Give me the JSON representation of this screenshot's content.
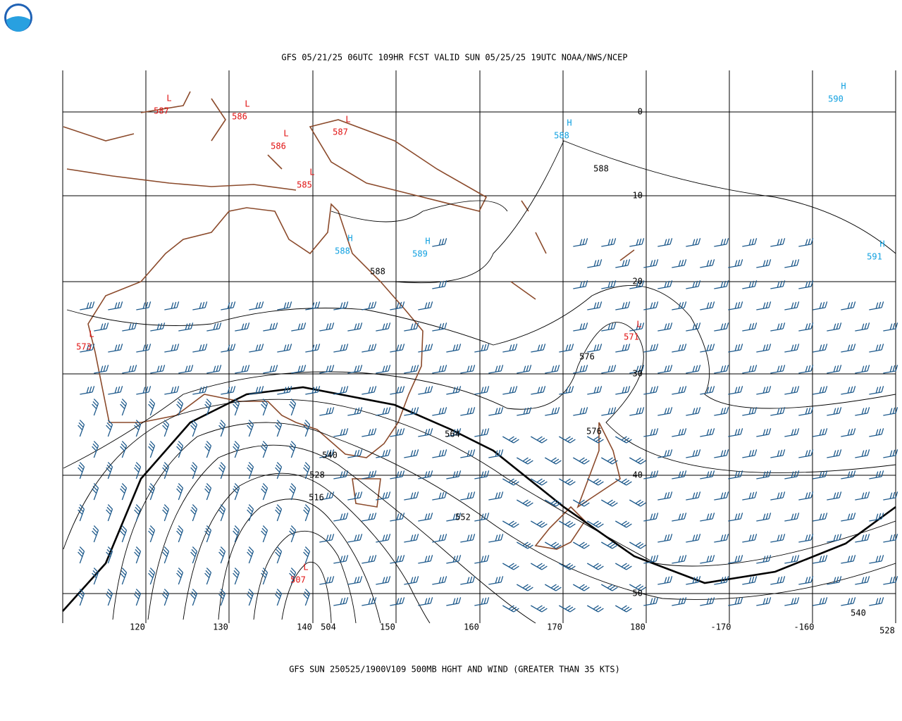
{
  "header": {
    "title": "GFS 05/21/25 06UTC 109HR FCST VALID SUN 05/25/25 19UTC NOAA/NWS/NCEP",
    "footer": "GFS SUN 250525/1900V109 500MB HGHT AND WIND (GREATER THAN 35 KTS)"
  },
  "map": {
    "lon_labels": [
      120,
      130,
      140,
      150,
      160,
      170,
      180,
      -170,
      -160
    ],
    "lat_labels": [
      0,
      10,
      20,
      30,
      40,
      50
    ],
    "pressure_centers": [
      {
        "type": "L",
        "value": 587
      },
      {
        "type": "L",
        "value": 586
      },
      {
        "type": "L",
        "value": 586
      },
      {
        "type": "L",
        "value": 587
      },
      {
        "type": "L",
        "value": 585
      },
      {
        "type": "H",
        "value": 588
      },
      {
        "type": "H",
        "value": 590
      },
      {
        "type": "H",
        "value": 588
      },
      {
        "type": "H",
        "value": 589
      },
      {
        "type": "H",
        "value": 591
      },
      {
        "type": "L",
        "value": 573
      },
      {
        "type": "L",
        "value": 571
      },
      {
        "type": "L",
        "value": 507
      }
    ],
    "contour_labels": [
      588,
      588,
      576,
      576,
      564,
      540,
      528,
      516,
      552,
      504,
      540,
      528
    ]
  }
}
